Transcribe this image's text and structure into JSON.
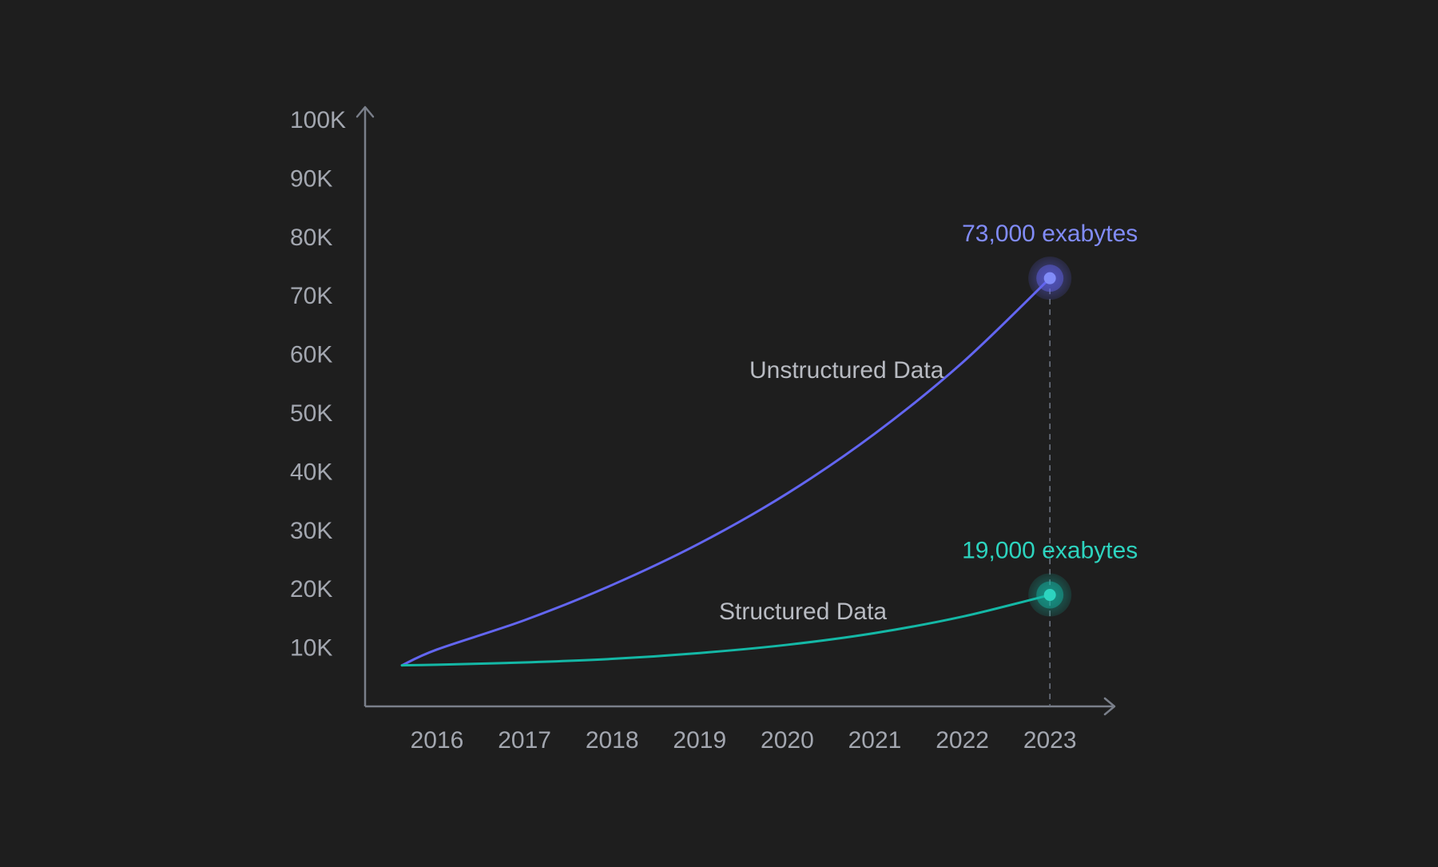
{
  "chart_data": {
    "type": "line",
    "title": "",
    "xlabel": "",
    "ylabel": "",
    "x_ticks": [
      "2016",
      "2017",
      "2018",
      "2019",
      "2020",
      "2021",
      "2022",
      "2023"
    ],
    "y_ticks": [
      "10K",
      "20K",
      "30K",
      "40K",
      "50K",
      "60K",
      "70K",
      "80K",
      "90K",
      "100K"
    ],
    "ylim": [
      0,
      100000
    ],
    "x_range": [
      2015.4,
      2023.7
    ],
    "grid": false,
    "legend": "inline labels",
    "series": [
      {
        "name": "Unstructured Data",
        "color": "#6366f1",
        "x": [
          2015.6,
          2016,
          2017,
          2018,
          2019,
          2020,
          2021,
          2022,
          2023
        ],
        "y": [
          7000,
          9700,
          14700,
          20700,
          27800,
          36300,
          46500,
          58600,
          73000
        ],
        "end_label": "73,000 exabytes",
        "end_label_color": "#818cf8"
      },
      {
        "name": "Structured Data",
        "color": "#14b8a6",
        "x": [
          2015.6,
          2016,
          2017,
          2018,
          2019,
          2020,
          2021,
          2022,
          2023
        ],
        "y": [
          7000,
          7100,
          7500,
          8100,
          9100,
          10500,
          12500,
          15300,
          19000
        ],
        "end_label": "19,000 exabytes",
        "end_label_color": "#2dd4bf"
      }
    ],
    "reference_line": {
      "x": 2023,
      "style": "dashed"
    }
  }
}
